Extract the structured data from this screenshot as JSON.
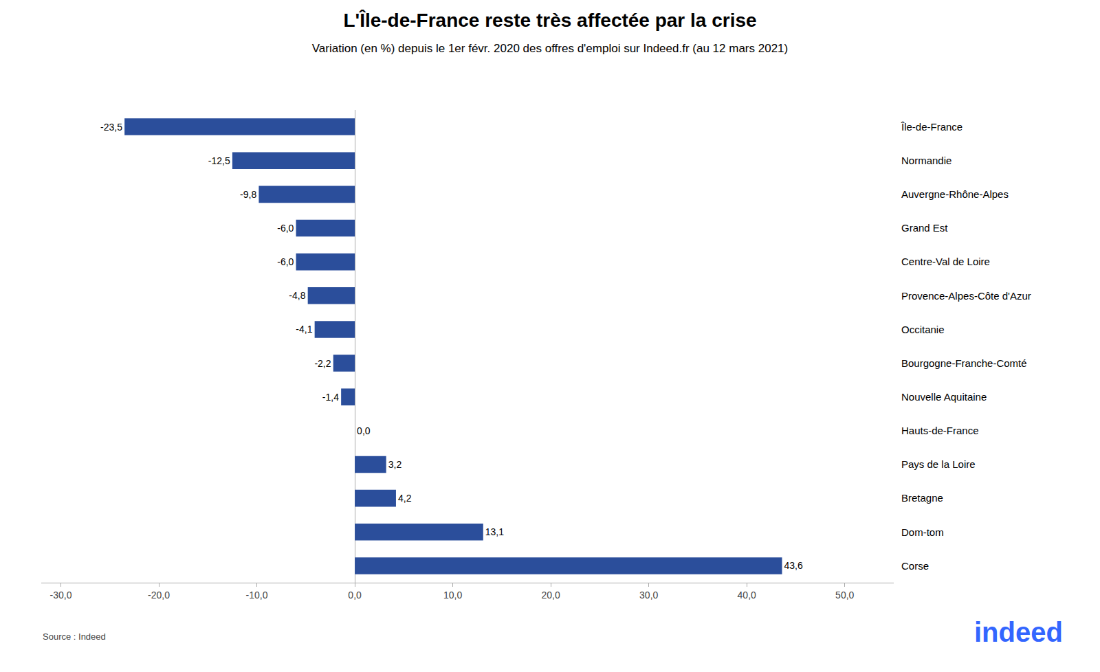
{
  "chart_data": {
    "type": "bar",
    "orientation": "horizontal",
    "title": "L'Île-de-France reste très affectée par la crise",
    "subtitle": "Variation (en %) depuis le 1er févr. 2020 des offres d'emploi sur Indeed.fr (au 12 mars 2021)",
    "annotations": [
      {
        "text": "Source : Indeed"
      },
      {
        "text": "indeed",
        "color": "#3366FF"
      }
    ],
    "categories": [
      "Île-de-France",
      "Normandie",
      "Auvergne-Rhône-Alpes",
      "Grand Est",
      "Centre-Val de Loire",
      "Provence-Alpes-Côte d'Azur",
      "Occitanie",
      "Bourgogne-Franche-Comté",
      "Nouvelle Aquitaine",
      "Hauts-de-France",
      "Pays de la Loire",
      "Bretagne",
      "Dom-tom",
      "Corse"
    ],
    "values": [
      -23.5,
      -12.5,
      -9.8,
      -6.0,
      -6.0,
      -4.8,
      -4.1,
      -2.2,
      -1.4,
      0.0,
      3.2,
      4.2,
      13.1,
      43.6
    ],
    "value_labels": [
      "-23,5",
      "-12,5",
      "-9,8",
      "-6,0",
      "-6,0",
      "-4,8",
      "-4,1",
      "-2,2",
      "-1,4",
      "0,0",
      "3,2",
      "4,2",
      "13,1",
      "43,6"
    ],
    "data_labels": true,
    "color": "#2B4E9B",
    "xlim": [
      -32,
      55
    ],
    "xticks": [
      {
        "value": -30,
        "label": "-30,0"
      },
      {
        "value": -20,
        "label": "-20,0"
      },
      {
        "value": -10,
        "label": "-10,0"
      },
      {
        "value": 0,
        "label": "0,0"
      },
      {
        "value": 10,
        "label": "10,0"
      },
      {
        "value": 20,
        "label": "20,0"
      },
      {
        "value": 30,
        "label": "30,0"
      },
      {
        "value": 40,
        "label": "40,0"
      },
      {
        "value": 50,
        "label": "50,0"
      }
    ],
    "grid": false
  }
}
